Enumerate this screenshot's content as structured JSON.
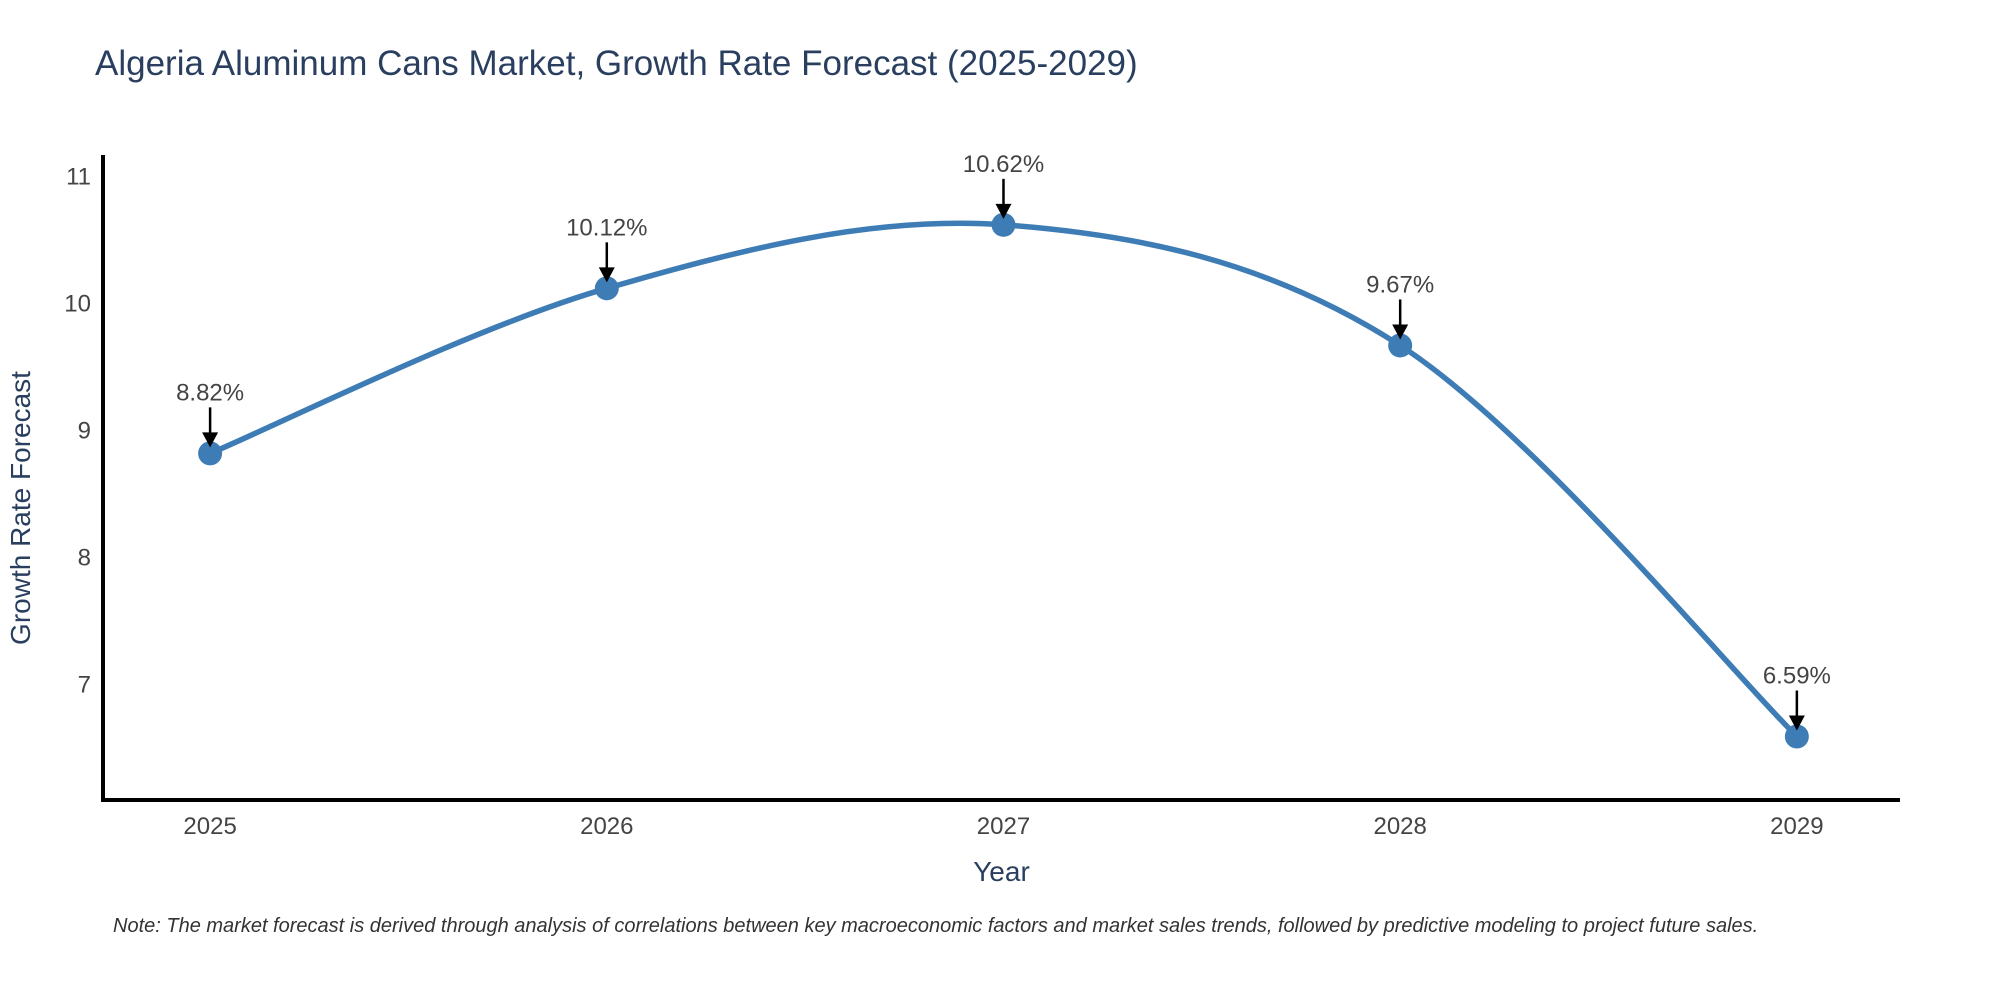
{
  "page": {
    "note": "Note: The market forecast is derived through analysis of correlations between key macroeconomic factors and market sales trends, followed by predictive modeling to project future sales."
  },
  "chart_data": {
    "type": "line",
    "title": "Algeria Aluminum Cans Market, Growth Rate Forecast (2025-2029)",
    "xlabel": "Year",
    "ylabel": "Growth Rate Forecast",
    "x": [
      2025,
      2026,
      2027,
      2028,
      2029
    ],
    "series": [
      {
        "name": "Growth Rate Forecast",
        "values": [
          8.82,
          10.12,
          10.62,
          9.67,
          6.59
        ],
        "labels": [
          "8.82%",
          "10.12%",
          "10.62%",
          "9.67%",
          "6.59%"
        ]
      }
    ],
    "line_shape": "spline",
    "markers": true,
    "annotation_style": "percent label with black down arrow above each point",
    "xticks": [
      2025,
      2026,
      2027,
      2028,
      2029
    ],
    "yticks": [
      7,
      8,
      9,
      10,
      11
    ],
    "xlim": [
      2024.73,
      2029.26
    ],
    "ylim": [
      6.09,
      11.17
    ],
    "grid": false,
    "legend": false,
    "colors": {
      "line": "#3E7CB5",
      "marker": "#3E7CB5",
      "axis": "#000000",
      "title_text": "#2a3f5f",
      "axis_title_text": "#2a3f5f",
      "tick_text": "#444444",
      "annotation_text": "#444444",
      "arrow": "#000000",
      "background": "#ffffff"
    }
  }
}
